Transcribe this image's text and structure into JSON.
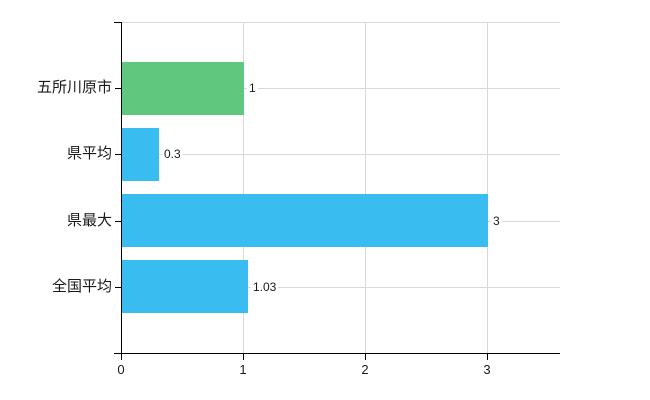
{
  "chart_data": {
    "type": "bar",
    "orientation": "horizontal",
    "title": "",
    "xlabel": "",
    "ylabel": "",
    "categories": [
      "五所川原市",
      "県平均",
      "県最大",
      "全国平均"
    ],
    "values": [
      1,
      0.3,
      3,
      1.03
    ],
    "value_labels": [
      "1",
      "0.3",
      "3",
      "1.03"
    ],
    "bar_colors": [
      "#5fc87e",
      "#39bcf0",
      "#39bcf0",
      "#39bcf0"
    ],
    "x_ticks": [
      "0",
      "1",
      "2",
      "3"
    ],
    "x_tick_values": [
      0,
      1,
      2,
      3
    ],
    "xlim": [
      0,
      3.6
    ],
    "grid": true,
    "legend": false
  },
  "colors": {
    "background": "#ffffff",
    "grid": "#d9d9d9",
    "axis": "#000000",
    "text": "#1a1a1a",
    "green_bar": "#5fc87e",
    "blue_bar": "#39bcf0"
  }
}
